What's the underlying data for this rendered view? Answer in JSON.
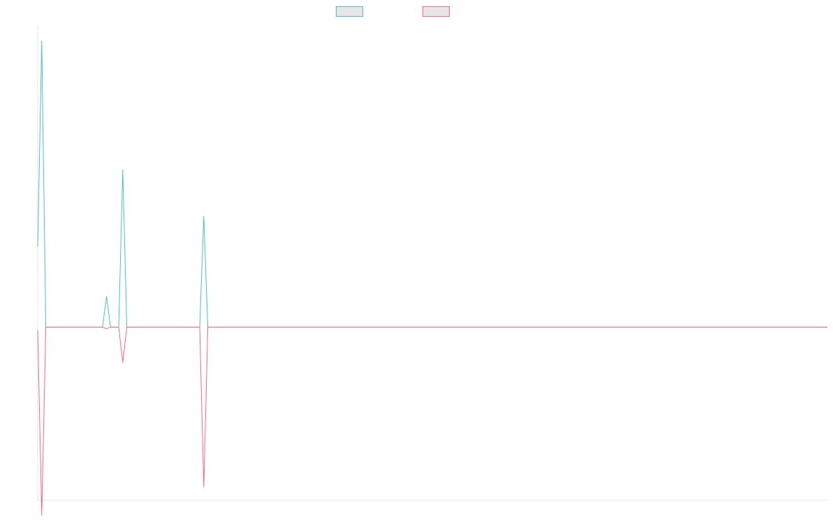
{
  "chart_data": {
    "type": "line",
    "title": "",
    "xlabel": "",
    "ylabel": "",
    "x_count": 196,
    "xlim": [
      0,
      195
    ],
    "ylim": [
      -580,
      1010
    ],
    "grid": false,
    "legend_placement": "top-center",
    "series": [
      {
        "name": "",
        "color": "#4bc0c0",
        "points": [
          [
            0,
            270
          ],
          [
            1,
            960
          ],
          [
            2,
            0
          ],
          [
            16,
            0
          ],
          [
            17,
            103
          ],
          [
            18,
            0
          ],
          [
            20,
            0
          ],
          [
            21,
            527
          ],
          [
            22,
            0
          ],
          [
            40,
            0
          ],
          [
            41,
            372
          ],
          [
            42,
            0
          ],
          [
            195,
            0
          ]
        ]
      },
      {
        "name": "",
        "color": "#ff6384",
        "points": [
          [
            0,
            -10
          ],
          [
            1,
            -630
          ],
          [
            2,
            0
          ],
          [
            16,
            0
          ],
          [
            17,
            -5
          ],
          [
            18,
            0
          ],
          [
            20,
            0
          ],
          [
            21,
            -118
          ],
          [
            22,
            0
          ],
          [
            40,
            0
          ],
          [
            41,
            -535
          ],
          [
            42,
            0
          ],
          [
            195,
            0
          ]
        ]
      }
    ]
  }
}
